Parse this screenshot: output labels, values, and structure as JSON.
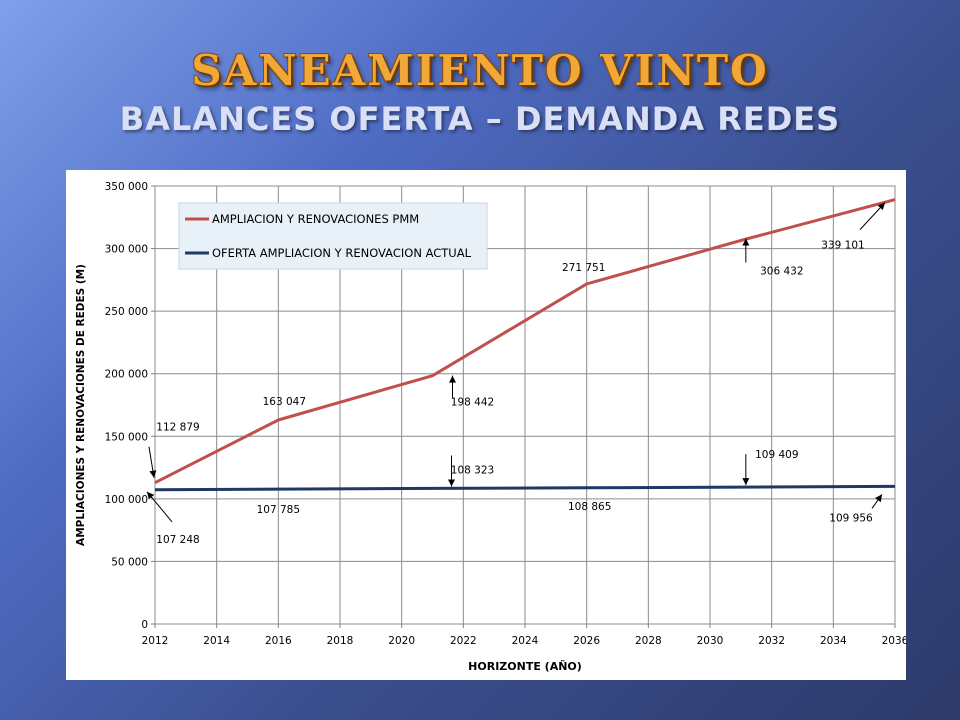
{
  "slide": {
    "title": "SANEAMIENTO VINTO",
    "subtitle": "BALANCES OFERTA – DEMANDA REDES"
  },
  "chart_data": {
    "type": "line",
    "xlabel": "HORIZONTE (AÑO)",
    "ylabel": "AMPLIACIONES Y RENOVACIONES DE REDES (M)",
    "xlim": [
      2012,
      2036
    ],
    "ylim": [
      0,
      350000
    ],
    "x_ticks": [
      "2012",
      "2014",
      "2016",
      "2018",
      "2020",
      "2022",
      "2024",
      "2026",
      "2028",
      "2030",
      "2032",
      "2034",
      "2036"
    ],
    "y_ticks": [
      "0",
      "50 000",
      "100 000",
      "150 000",
      "200 000",
      "250 000",
      "300 000",
      "350 000"
    ],
    "grid": true,
    "legend_position": "top-left",
    "series": [
      {
        "name": "AMPLIACION Y RENOVACIONES PMM",
        "color": "#c0504d",
        "points": [
          [
            2012,
            112879
          ],
          [
            2016,
            163047
          ],
          [
            2021,
            198442
          ],
          [
            2026,
            271751
          ],
          [
            2031,
            306432
          ],
          [
            2036,
            339101
          ]
        ]
      },
      {
        "name": "OFERTA AMPLIACION Y RENOVACION ACTUAL",
        "color": "#1f3864",
        "points": [
          [
            2012,
            107248
          ],
          [
            2016,
            107785
          ],
          [
            2021,
            108323
          ],
          [
            2026,
            108865
          ],
          [
            2031,
            109409
          ],
          [
            2036,
            109956
          ]
        ]
      }
    ],
    "annotations": [
      {
        "text": "112 879",
        "x": 2012,
        "y": 112879
      },
      {
        "text": "163 047",
        "x": 2016,
        "y": 163047
      },
      {
        "text": "198 442",
        "x": 2021,
        "y": 198442
      },
      {
        "text": "271 751",
        "x": 2026,
        "y": 271751
      },
      {
        "text": "306 432",
        "x": 2031,
        "y": 306432
      },
      {
        "text": "339 101",
        "x": 2036,
        "y": 339101
      },
      {
        "text": "107 248",
        "x": 2012,
        "y": 107248
      },
      {
        "text": "107 785",
        "x": 2016,
        "y": 107785
      },
      {
        "text": "108 323",
        "x": 2021,
        "y": 108323
      },
      {
        "text": "108 865",
        "x": 2026,
        "y": 108865
      },
      {
        "text": "109 409",
        "x": 2031,
        "y": 109409
      },
      {
        "text": "109 956",
        "x": 2036,
        "y": 109956
      }
    ]
  }
}
